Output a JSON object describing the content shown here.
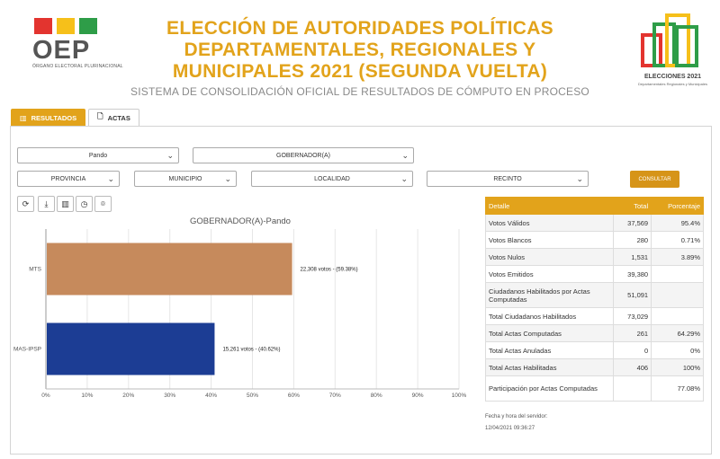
{
  "header": {
    "logo_text": "OEP",
    "logo_subtitle": "ÓRGANO ELECTORAL PLURINACIONAL",
    "title_lines": [
      "ELECCIÓN DE AUTORIDADES POLÍTICAS",
      "DEPARTAMENTALES, REGIONALES Y",
      "MUNICIPALES 2021 (SEGUNDA VUELTA)"
    ],
    "subtitle": "SISTEMA DE CONSOLIDACIÓN OFICIAL DE RESULTADOS DE CÓMPUTO EN PROCESO",
    "elecciones_label": "ELECCIONES 2021",
    "elecciones_sub": "Departamentales Regionales y Municipales"
  },
  "colors": {
    "accent": "#e2a31b",
    "logo_red": "#e3342f",
    "logo_yellow": "#f6c01a",
    "logo_green": "#2e9d48",
    "mts": "#c68a5c",
    "mas": "#1c3d94"
  },
  "tabs": [
    {
      "label": "RESULTADOS",
      "icon": "bar-chart-icon",
      "active": true
    },
    {
      "label": "ACTAS",
      "icon": "document-icon",
      "active": false
    }
  ],
  "filters": {
    "department": "Pando",
    "election_type": "GOBERNADOR(A)",
    "provincia": "PROVINCIA",
    "municipio": "MUNICIPIO",
    "localidad": "LOCALIDAD",
    "recinto": "RECINTO",
    "consult_label": "CONSULTAR"
  },
  "toolbar": [
    "refresh-icon",
    "download-icon",
    "bar-chart-icon",
    "clock-icon",
    "camera-icon"
  ],
  "chart_data": {
    "type": "bar",
    "orientation": "horizontal",
    "title": "GOBERNADOR(A)-Pando",
    "categories": [
      "MTS",
      "MAS-IPSP"
    ],
    "values": [
      59.38,
      40.62
    ],
    "labels": [
      "22,308 votos - (59.38%)",
      "15,261 votos - (40.62%)"
    ],
    "colors": [
      "#c68a5c",
      "#1c3d94"
    ],
    "xlim": [
      0,
      100
    ],
    "xticks": [
      "0%",
      "10%",
      "20%",
      "30%",
      "40%",
      "50%",
      "60%",
      "70%",
      "80%",
      "90%",
      "100%"
    ],
    "grid": true
  },
  "table": {
    "headers": [
      "Detalle",
      "Total",
      "Porcentaje"
    ],
    "rows": [
      {
        "detail": "Votos Válidos",
        "total": "37,569",
        "pct": "95.4%"
      },
      {
        "detail": "Votos Blancos",
        "total": "280",
        "pct": "0.71%"
      },
      {
        "detail": "Votos Nulos",
        "total": "1,531",
        "pct": "3.89%"
      },
      {
        "detail": "Votos Emitidos",
        "total": "39,380",
        "pct": ""
      },
      {
        "detail": "Ciudadanos Habilitados por Actas Computadas",
        "total": "51,091",
        "pct": ""
      },
      {
        "detail": "Total Ciudadanos Habilitados",
        "total": "73,029",
        "pct": ""
      },
      {
        "detail": "Total Actas Computadas",
        "total": "261",
        "pct": "64.29%"
      },
      {
        "detail": "Total Actas Anuladas",
        "total": "0",
        "pct": "0%"
      },
      {
        "detail": "Total Actas Habilitadas",
        "total": "406",
        "pct": "100%"
      },
      {
        "detail": "Participación por Actas Computadas",
        "total": "",
        "pct": "77.08%"
      }
    ]
  },
  "server": {
    "label": "Fecha y hora del servidor:",
    "datetime": "12/04/2021 09:36:27"
  }
}
